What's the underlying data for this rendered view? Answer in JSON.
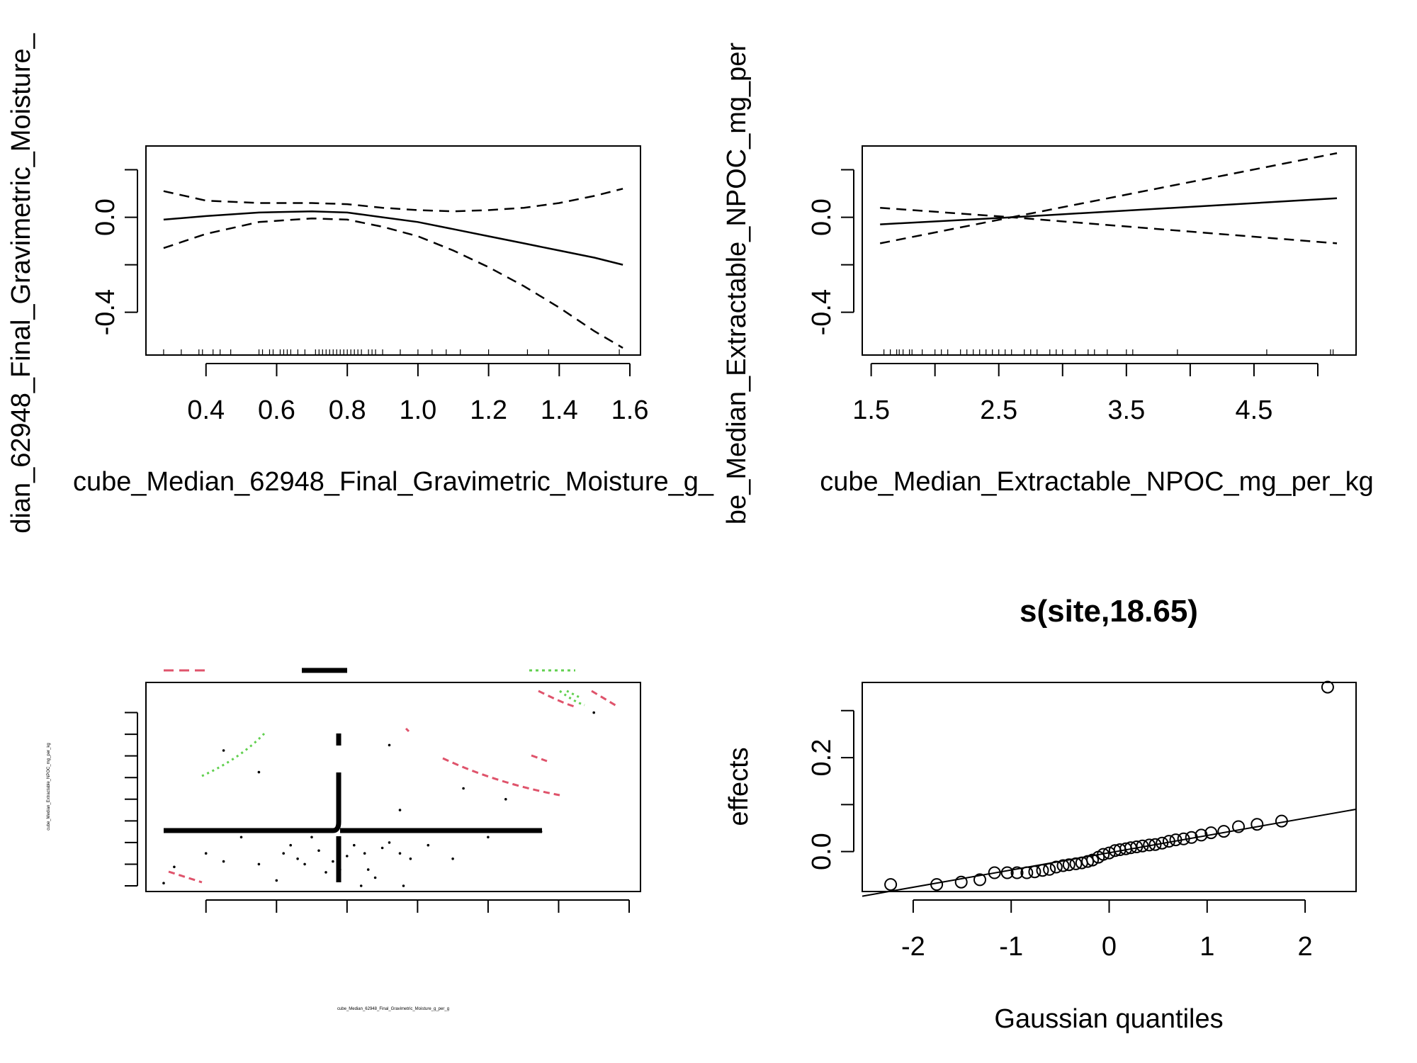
{
  "chart_data": [
    {
      "type": "line",
      "panel": "top-left",
      "title": "",
      "xlabel": "cube_Median_62948_Final_Gravimetric_Moisture_g_",
      "ylabel": "dian_62948_Final_Gravimetric_Moisture_",
      "xlim": [
        0.23,
        1.63
      ],
      "ylim": [
        -0.58,
        0.3
      ],
      "x_ticks": [
        0.4,
        0.6,
        0.8,
        1.0,
        1.2,
        1.4,
        1.6
      ],
      "x_tick_labels": [
        "0.4",
        "0.6",
        "0.8",
        "1.0",
        "1.2",
        "1.4",
        "1.6"
      ],
      "y_ticks": [
        -0.4,
        -0.2,
        0.0,
        0.2
      ],
      "y_tick_labels": [
        "-0.4",
        "",
        "0.0",
        ""
      ],
      "series": [
        {
          "style": "solid",
          "x": [
            0.28,
            0.4,
            0.55,
            0.7,
            0.8,
            0.9,
            1.0,
            1.1,
            1.2,
            1.3,
            1.4,
            1.5,
            1.58
          ],
          "y": [
            -0.01,
            0.005,
            0.02,
            0.025,
            0.02,
            0.0,
            -0.02,
            -0.05,
            -0.08,
            -0.11,
            -0.14,
            -0.17,
            -0.2
          ]
        },
        {
          "style": "dashed",
          "x": [
            0.28,
            0.4,
            0.55,
            0.7,
            0.8,
            0.9,
            1.0,
            1.1,
            1.2,
            1.3,
            1.4,
            1.5,
            1.58
          ],
          "y": [
            0.11,
            0.07,
            0.06,
            0.06,
            0.055,
            0.04,
            0.03,
            0.025,
            0.03,
            0.04,
            0.06,
            0.09,
            0.12
          ]
        },
        {
          "style": "dashed",
          "x": [
            0.28,
            0.4,
            0.55,
            0.7,
            0.8,
            0.9,
            1.0,
            1.1,
            1.2,
            1.3,
            1.4,
            1.5,
            1.58
          ],
          "y": [
            -0.13,
            -0.07,
            -0.02,
            -0.005,
            -0.01,
            -0.04,
            -0.08,
            -0.14,
            -0.21,
            -0.29,
            -0.38,
            -0.48,
            -0.55
          ]
        }
      ],
      "rug": [
        0.28,
        0.33,
        0.38,
        0.39,
        0.42,
        0.44,
        0.47,
        0.55,
        0.56,
        0.58,
        0.59,
        0.61,
        0.62,
        0.63,
        0.64,
        0.66,
        0.68,
        0.71,
        0.72,
        0.73,
        0.74,
        0.75,
        0.76,
        0.77,
        0.78,
        0.79,
        0.8,
        0.81,
        0.82,
        0.83,
        0.84,
        0.86,
        0.87,
        0.88,
        0.9,
        0.95,
        1.0,
        1.04,
        1.08,
        1.12,
        1.2,
        1.31,
        1.37,
        1.57
      ]
    },
    {
      "type": "line",
      "panel": "top-right",
      "title": "",
      "xlabel": "cube_Median_Extractable_NPOC_mg_per_kg",
      "ylabel": "be_Median_Extractable_NPOC_mg_per",
      "xlim": [
        1.43,
        5.3
      ],
      "ylim": [
        -0.58,
        0.3
      ],
      "x_ticks": [
        1.5,
        2.0,
        2.5,
        3.0,
        3.5,
        4.0,
        4.5,
        5.0
      ],
      "x_tick_labels": [
        "1.5",
        "",
        "2.5",
        "",
        "3.5",
        "",
        "4.5",
        ""
      ],
      "y_ticks": [
        -0.4,
        -0.2,
        0.0,
        0.2
      ],
      "y_tick_labels": [
        "-0.4",
        "",
        "0.0",
        ""
      ],
      "series": [
        {
          "style": "solid",
          "x": [
            1.57,
            2.6,
            5.15
          ],
          "y": [
            -0.03,
            0.0,
            0.08
          ]
        },
        {
          "style": "dashed",
          "x": [
            1.57,
            2.6,
            5.15
          ],
          "y": [
            0.04,
            0.0,
            0.27
          ]
        },
        {
          "style": "dashed",
          "x": [
            1.57,
            2.6,
            5.15
          ],
          "y": [
            -0.11,
            0.0,
            -0.11
          ]
        }
      ],
      "rug": [
        1.6,
        1.65,
        1.7,
        1.72,
        1.75,
        1.8,
        1.82,
        1.9,
        2.0,
        2.05,
        2.1,
        2.2,
        2.25,
        2.3,
        2.35,
        2.4,
        2.45,
        2.5,
        2.55,
        2.6,
        2.7,
        2.75,
        2.8,
        2.9,
        2.95,
        3.0,
        3.1,
        3.2,
        3.25,
        3.35,
        3.5,
        3.55,
        3.9,
        4.6,
        5.1,
        5.12
      ]
    },
    {
      "type": "scatter",
      "panel": "bottom-left",
      "title": "",
      "xlabel": "cube_Median_62948_Final_Gravimetric_Moisture_g_per_g",
      "ylabel": "cube_Median_Extractable_NPOC_mg_per_kg",
      "legend": "top",
      "colors": {
        "red": "#df536b",
        "green": "#61d04f",
        "black": "#000000"
      },
      "points": [
        [
          0.28,
          1.65
        ],
        [
          0.31,
          1.95
        ],
        [
          0.4,
          2.2
        ],
        [
          0.45,
          2.05
        ],
        [
          0.5,
          2.5
        ],
        [
          0.55,
          2.0
        ],
        [
          0.6,
          1.7
        ],
        [
          0.62,
          2.2
        ],
        [
          0.64,
          2.35
        ],
        [
          0.66,
          2.1
        ],
        [
          0.68,
          2.0
        ],
        [
          0.7,
          2.5
        ],
        [
          0.72,
          2.25
        ],
        [
          0.74,
          1.85
        ],
        [
          0.76,
          2.05
        ],
        [
          0.78,
          1.9
        ],
        [
          0.8,
          2.15
        ],
        [
          0.82,
          2.35
        ],
        [
          0.85,
          2.2
        ],
        [
          0.86,
          1.9
        ],
        [
          0.88,
          1.75
        ],
        [
          0.9,
          2.3
        ],
        [
          0.92,
          2.4
        ],
        [
          0.95,
          2.2
        ],
        [
          0.98,
          2.1
        ],
        [
          1.0,
          2.6
        ],
        [
          1.03,
          2.35
        ],
        [
          1.1,
          2.1
        ],
        [
          1.2,
          2.5
        ],
        [
          1.25,
          3.2
        ],
        [
          1.35,
          2.6
        ],
        [
          0.45,
          4.1
        ],
        [
          0.55,
          3.7
        ],
        [
          0.92,
          4.2
        ],
        [
          0.95,
          3.0
        ],
        [
          1.13,
          3.4
        ],
        [
          1.5,
          4.8
        ],
        [
          0.84,
          1.6
        ],
        [
          0.96,
          1.6
        ]
      ]
    },
    {
      "type": "scatter",
      "panel": "bottom-right",
      "title": "s(site,18.65)",
      "xlabel": "Gaussian quantiles",
      "ylabel": "effects",
      "xlim": [
        -2.52,
        2.52
      ],
      "ylim": [
        -0.085,
        0.36
      ],
      "x_ticks": [
        -2,
        -1,
        0,
        1,
        2
      ],
      "x_tick_labels": [
        "-2",
        "-1",
        "0",
        "1",
        "2"
      ],
      "y_ticks": [
        0.0,
        0.1,
        0.2,
        0.3
      ],
      "y_tick_labels": [
        "0.0",
        "",
        "0.2",
        ""
      ],
      "reference_line": {
        "x": [
          -2.52,
          2.52
        ],
        "y": [
          -0.095,
          0.09
        ]
      },
      "points": [
        [
          -2.23,
          -0.07
        ],
        [
          -1.76,
          -0.07
        ],
        [
          -1.51,
          -0.065
        ],
        [
          -1.32,
          -0.06
        ],
        [
          -1.17,
          -0.045
        ],
        [
          -1.04,
          -0.045
        ],
        [
          -0.94,
          -0.045
        ],
        [
          -0.84,
          -0.045
        ],
        [
          -0.76,
          -0.043
        ],
        [
          -0.68,
          -0.04
        ],
        [
          -0.61,
          -0.038
        ],
        [
          -0.54,
          -0.033
        ],
        [
          -0.47,
          -0.03
        ],
        [
          -0.41,
          -0.028
        ],
        [
          -0.34,
          -0.026
        ],
        [
          -0.28,
          -0.024
        ],
        [
          -0.22,
          -0.021
        ],
        [
          -0.17,
          -0.018
        ],
        [
          -0.11,
          -0.012
        ],
        [
          -0.06,
          -0.006
        ],
        [
          0.0,
          -0.003
        ],
        [
          0.06,
          0.002
        ],
        [
          0.11,
          0.004
        ],
        [
          0.17,
          0.006
        ],
        [
          0.22,
          0.008
        ],
        [
          0.28,
          0.01
        ],
        [
          0.34,
          0.012
        ],
        [
          0.41,
          0.014
        ],
        [
          0.47,
          0.015
        ],
        [
          0.54,
          0.018
        ],
        [
          0.61,
          0.022
        ],
        [
          0.68,
          0.025
        ],
        [
          0.76,
          0.027
        ],
        [
          0.84,
          0.03
        ],
        [
          0.94,
          0.035
        ],
        [
          1.04,
          0.04
        ],
        [
          1.17,
          0.043
        ],
        [
          1.32,
          0.053
        ],
        [
          1.51,
          0.058
        ],
        [
          1.76,
          0.065
        ],
        [
          2.23,
          0.35
        ]
      ]
    }
  ]
}
